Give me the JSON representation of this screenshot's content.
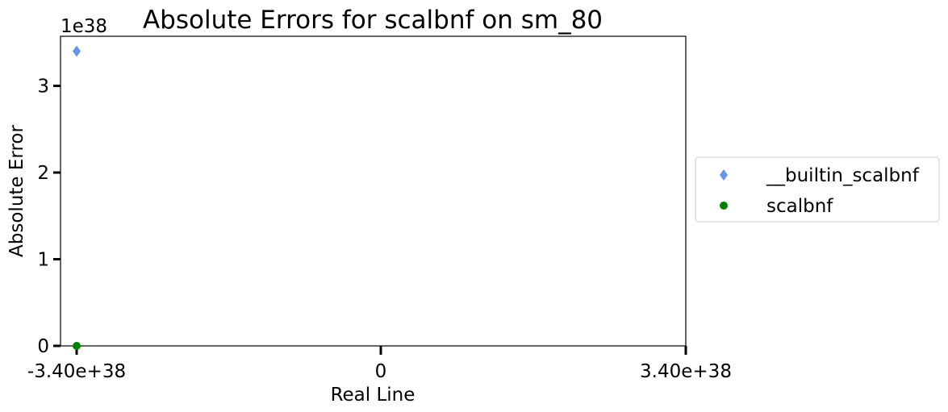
{
  "chart_data": {
    "type": "scatter",
    "title": "Absolute Errors for scalbnf on sm_80",
    "xlabel": "Real Line",
    "ylabel": "Absolute Error",
    "y_offset_label": "1e38",
    "x_scale": "symlog",
    "xlim": [
      -3.4e+38,
      3.4e+38
    ],
    "ylim": [
      0,
      3.57e+38
    ],
    "x_ticks": [
      {
        "value": -3.4e+38,
        "label": "-3.40e+38"
      },
      {
        "value": 0,
        "label": "0"
      },
      {
        "value": 3.4e+38,
        "label": "3.40e+38"
      }
    ],
    "y_ticks": [
      {
        "value": 0,
        "label": "0"
      },
      {
        "value": 1e+38,
        "label": "1"
      },
      {
        "value": 2e+38,
        "label": "2"
      },
      {
        "value": 3e+38,
        "label": "3"
      }
    ],
    "grid": false,
    "legend_position": "right-outside",
    "series": [
      {
        "name": "__builtin_scalbnf",
        "marker": "diamond",
        "color": "#6495ED",
        "points": [
          {
            "x": -3.4e+38,
            "y": 3.4e+38
          }
        ]
      },
      {
        "name": "scalbnf",
        "marker": "circle",
        "color": "#008000",
        "points": [
          {
            "x": -3.4e+38,
            "y": 0
          }
        ]
      }
    ]
  }
}
